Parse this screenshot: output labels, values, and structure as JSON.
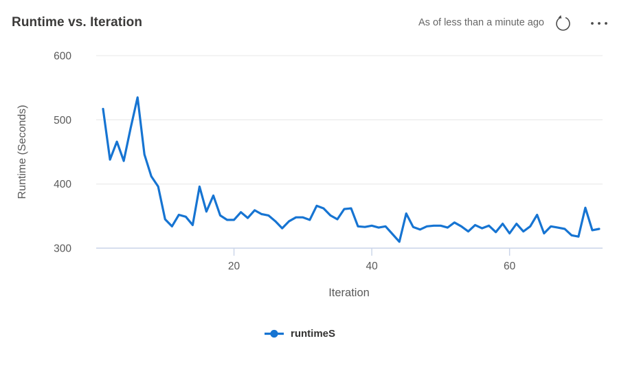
{
  "header": {
    "title": "Runtime vs. Iteration",
    "freshness_text": "As of less than a minute ago"
  },
  "legend": {
    "label": "runtimeS"
  },
  "colors": {
    "series_blue": "#1674d2",
    "gridline": "#ececec",
    "axis_line": "#c9d4e8",
    "tick_label": "#595959",
    "axis_title": "#595959",
    "title_text": "#3b3a39",
    "freshness_color": "#666666",
    "icon_color": "#4a4a4a",
    "legend_text": "#323130"
  },
  "chart_data": {
    "type": "line",
    "title": "Runtime vs. Iteration",
    "xlabel": "Iteration",
    "ylabel": "Runtime (Seconds)",
    "xlim": [
      0,
      73.5
    ],
    "ylim": [
      300,
      600
    ],
    "x_ticks": [
      20,
      40,
      60
    ],
    "y_ticks": [
      300,
      400,
      500,
      600
    ],
    "grid": "horizontal-only",
    "legend_position": "bottom-center",
    "series": [
      {
        "name": "runtimeS",
        "color": "#1674d2",
        "x": [
          1,
          2,
          3,
          4,
          5,
          6,
          7,
          8,
          9,
          10,
          11,
          12,
          13,
          14,
          15,
          16,
          17,
          18,
          19,
          20,
          21,
          22,
          23,
          24,
          25,
          26,
          27,
          28,
          29,
          30,
          31,
          32,
          33,
          34,
          35,
          36,
          37,
          38,
          39,
          40,
          41,
          42,
          43,
          44,
          45,
          46,
          47,
          48,
          49,
          50,
          51,
          52,
          53,
          54,
          55,
          56,
          57,
          58,
          59,
          60,
          61,
          62,
          63,
          64,
          65,
          66,
          67,
          68,
          69,
          70,
          71,
          72,
          73
        ],
        "y": [
          517,
          438,
          466,
          436,
          487,
          535,
          446,
          412,
          396,
          345,
          334,
          352,
          349,
          336,
          396,
          357,
          382,
          351,
          344,
          344,
          356,
          347,
          359,
          353,
          351,
          342,
          331,
          342,
          348,
          348,
          344,
          366,
          362,
          351,
          345,
          361,
          362,
          334,
          333,
          335,
          332,
          334,
          322,
          310,
          354,
          333,
          329,
          334,
          335,
          335,
          332,
          340,
          334,
          326,
          336,
          331,
          335,
          325,
          338,
          323,
          338,
          326,
          334,
          352,
          323,
          334,
          332,
          330,
          320,
          318,
          363,
          328,
          330
        ]
      }
    ]
  }
}
